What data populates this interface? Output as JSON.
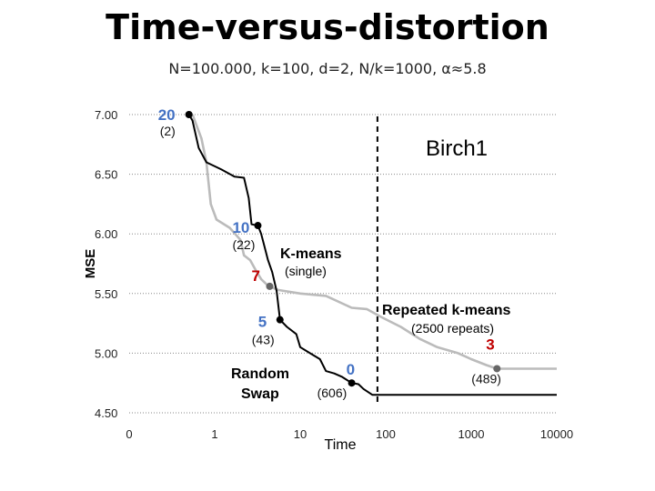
{
  "title": "Time-versus-distortion",
  "subtitle": "N=100.000, k=100, d=2, N/k=1000, α≈5.8",
  "chart_data": {
    "type": "line",
    "title": "Time-versus-distortion",
    "subtitle": "N=100.000, k=100, d=2, N/k=1000, α≈5.8",
    "xlabel": "Time",
    "ylabel": "MSE",
    "xscale": "log",
    "xlim": [
      0.1,
      10000
    ],
    "ylim": [
      4.5,
      7.0
    ],
    "x_tick_labels": [
      "0",
      "1",
      "10",
      "100",
      "1000",
      "10000"
    ],
    "x_tick_values": [
      0.1,
      1,
      10,
      100,
      1000,
      10000
    ],
    "y_tick_labels": [
      "7.00",
      "6.50",
      "6.00",
      "5.50",
      "5.00",
      "4.50"
    ],
    "y_tick_values": [
      7.0,
      6.5,
      6.0,
      5.5,
      5.0,
      4.5
    ],
    "grid": "horizontal-dotted",
    "dataset_label": "Birch1",
    "reference_line_x": 80,
    "series": [
      {
        "name": "Random Swap",
        "color": "#000000",
        "points": [
          [
            0.5,
            7.0
          ],
          [
            0.55,
            6.95
          ],
          [
            0.65,
            6.72
          ],
          [
            0.8,
            6.6
          ],
          [
            1.2,
            6.54
          ],
          [
            1.7,
            6.48
          ],
          [
            2.2,
            6.47
          ],
          [
            2.5,
            6.3
          ],
          [
            2.7,
            6.08
          ],
          [
            3.2,
            6.07
          ],
          [
            3.5,
            6.0
          ],
          [
            3.8,
            5.9
          ],
          [
            4.2,
            5.78
          ],
          [
            4.7,
            5.68
          ],
          [
            5.3,
            5.52
          ],
          [
            5.8,
            5.28
          ],
          [
            7,
            5.22
          ],
          [
            9,
            5.16
          ],
          [
            10,
            5.05
          ],
          [
            13,
            5.0
          ],
          [
            17,
            4.95
          ],
          [
            20,
            4.85
          ],
          [
            25,
            4.83
          ],
          [
            31,
            4.8
          ],
          [
            40,
            4.75
          ],
          [
            48,
            4.74
          ],
          [
            55,
            4.7
          ],
          [
            70,
            4.65
          ],
          [
            10000,
            4.65
          ]
        ]
      },
      {
        "name": "Repeated k-means",
        "color": "#bbbbbb",
        "points": [
          [
            0.55,
            7.0
          ],
          [
            0.7,
            6.8
          ],
          [
            0.8,
            6.6
          ],
          [
            0.9,
            6.25
          ],
          [
            1.05,
            6.12
          ],
          [
            1.5,
            6.05
          ],
          [
            2.0,
            5.95
          ],
          [
            2.2,
            5.82
          ],
          [
            2.6,
            5.78
          ],
          [
            3.0,
            5.7
          ],
          [
            3.5,
            5.62
          ],
          [
            4.0,
            5.58
          ],
          [
            4.4,
            5.56
          ],
          [
            5.5,
            5.53
          ],
          [
            10,
            5.5
          ],
          [
            20,
            5.48
          ],
          [
            40,
            5.38
          ],
          [
            60,
            5.37
          ],
          [
            90,
            5.3
          ],
          [
            150,
            5.22
          ],
          [
            250,
            5.12
          ],
          [
            400,
            5.05
          ],
          [
            700,
            5.0
          ],
          [
            1000,
            4.95
          ],
          [
            1500,
            4.9
          ],
          [
            2000,
            4.87
          ],
          [
            10000,
            4.87
          ]
        ]
      }
    ],
    "annotations": [
      {
        "label": "20",
        "sub": "(2)",
        "x": 0.5,
        "y": 7.0,
        "color": "#4472c4"
      },
      {
        "label": "10",
        "sub": "(22)",
        "x": 3.2,
        "y": 6.07,
        "color": "#4472c4"
      },
      {
        "label": "7",
        "sub": "K-means (single)",
        "x": 4.4,
        "y": 5.56,
        "color": "#c00000"
      },
      {
        "label": "5",
        "sub": "(43)",
        "x": 5.8,
        "y": 5.28,
        "color": "#4472c4"
      },
      {
        "label": "0",
        "sub": "(606)",
        "x": 40,
        "y": 4.75,
        "color": "#4472c4"
      },
      {
        "label": "3",
        "sub": "(489)",
        "x": 2000,
        "y": 4.87,
        "color": "#c00000"
      }
    ],
    "labels": {
      "kmeans": "K-means",
      "single": "(single)",
      "repeated": "Repeated k-means",
      "repeats": "(2500 repeats)",
      "random": "Random",
      "swap": "Swap"
    }
  }
}
